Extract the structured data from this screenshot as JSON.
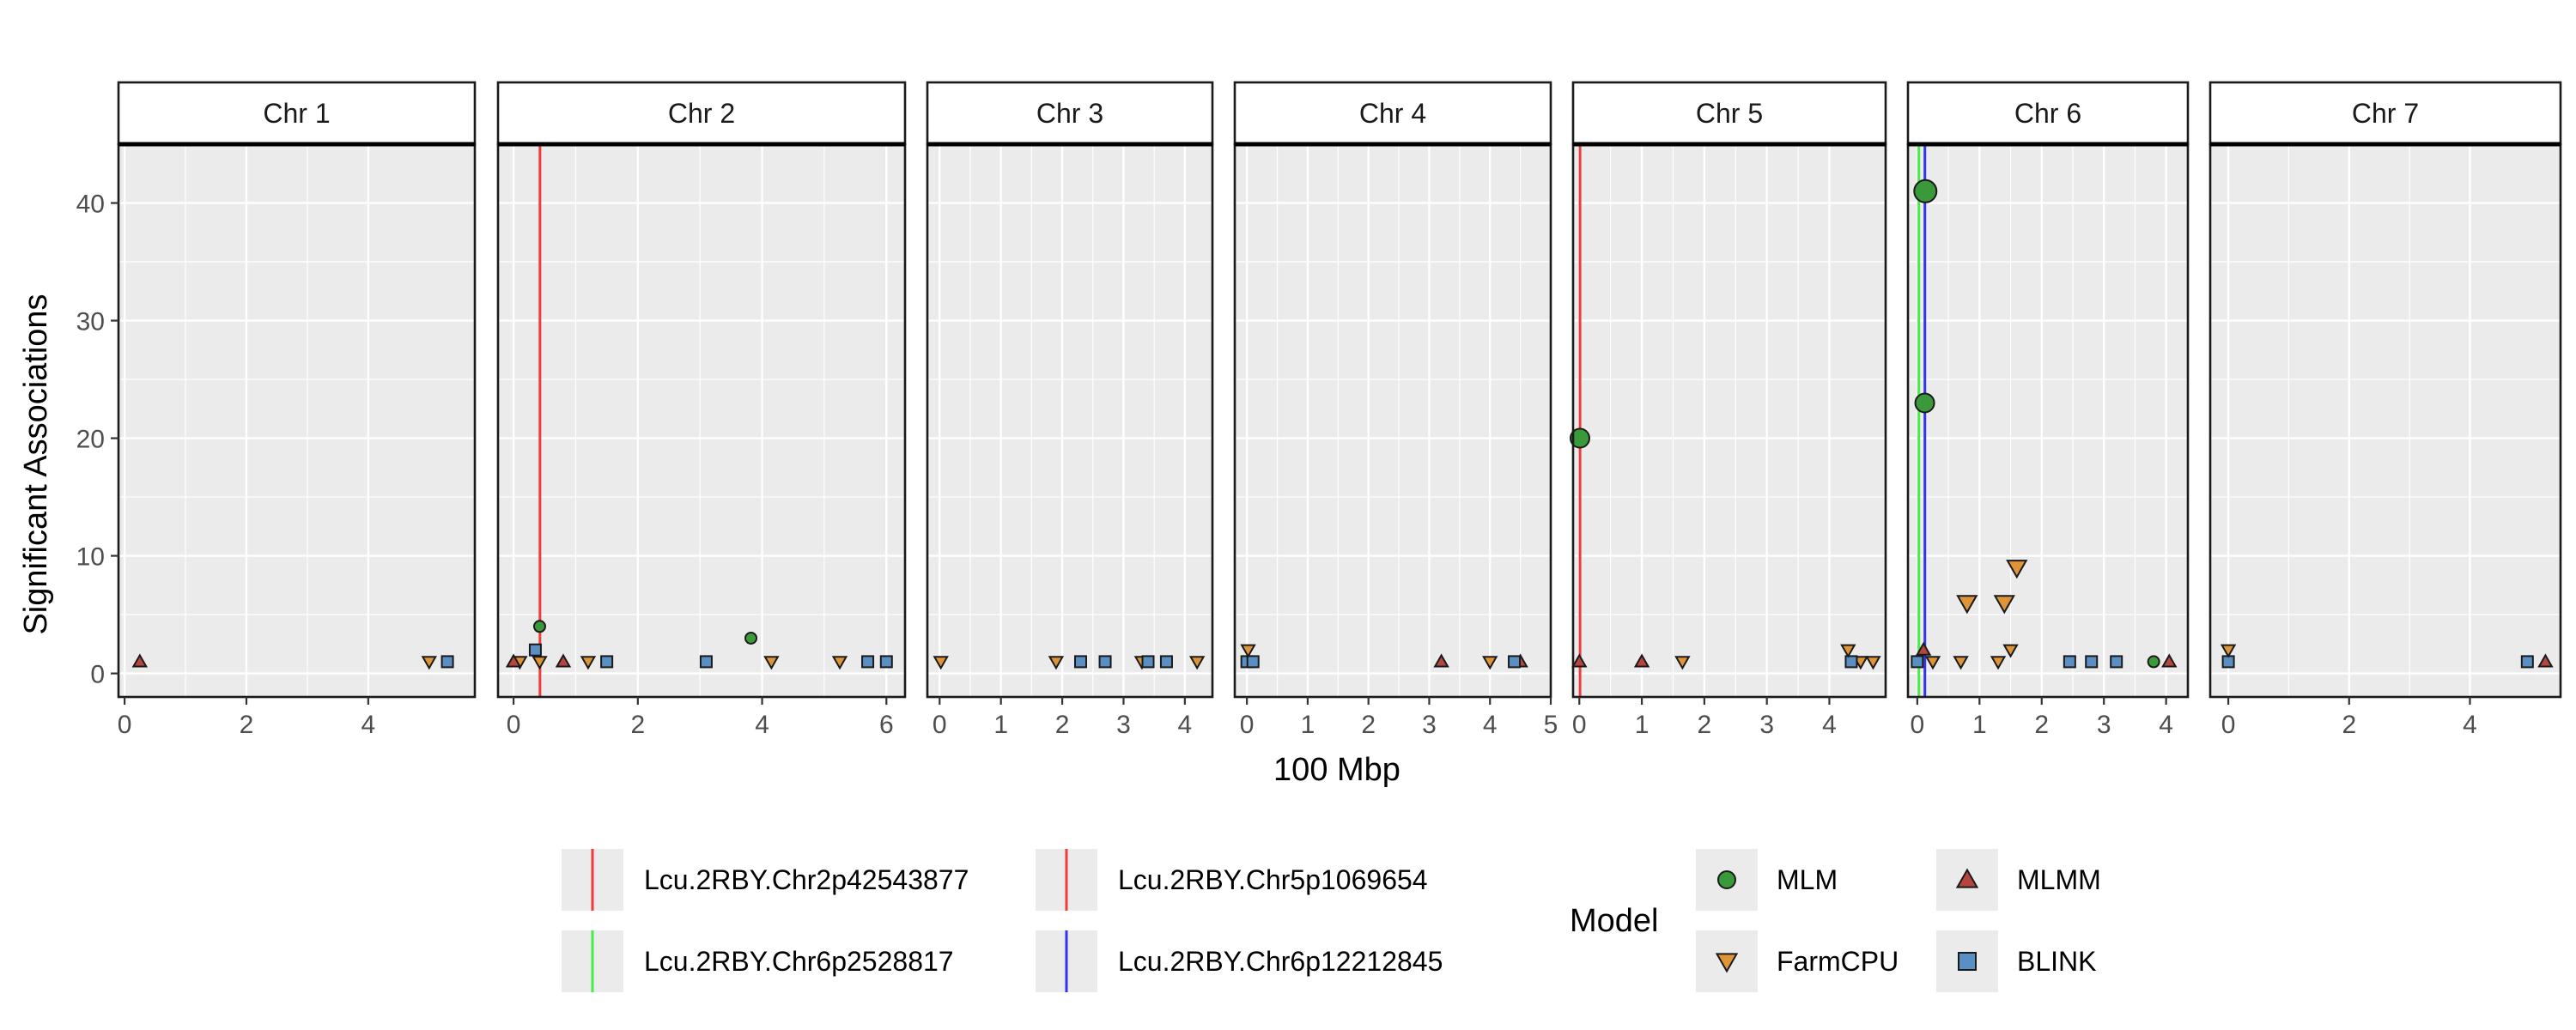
{
  "chart_data": {
    "type": "scatter",
    "xlabel": "100 Mbp",
    "ylabel": "Significant Associations",
    "ylim": [
      -2,
      45
    ],
    "y_ticks": [
      0,
      10,
      20,
      30,
      40
    ],
    "grid": true,
    "legend_placement": "bottom",
    "panels": [
      {
        "label": "Chr 1",
        "xlim": [
          -0.1,
          5.75
        ],
        "x_ticks": [
          0,
          2,
          4
        ]
      },
      {
        "label": "Chr 2",
        "xlim": [
          -0.25,
          6.3
        ],
        "x_ticks": [
          0,
          2,
          4,
          6
        ]
      },
      {
        "label": "Chr 3",
        "xlim": [
          -0.2,
          4.45
        ],
        "x_ticks": [
          0,
          1,
          2,
          3,
          4
        ]
      },
      {
        "label": "Chr 4",
        "xlim": [
          -0.2,
          5.0
        ],
        "x_ticks": [
          0,
          1,
          2,
          3,
          4,
          5
        ]
      },
      {
        "label": "Chr 5",
        "xlim": [
          -0.1,
          4.9
        ],
        "x_ticks": [
          0,
          1,
          2,
          3,
          4
        ]
      },
      {
        "label": "Chr 6",
        "xlim": [
          -0.15,
          4.35
        ],
        "x_ticks": [
          0,
          1,
          2,
          3,
          4
        ]
      },
      {
        "label": "Chr 7",
        "xlim": [
          -0.3,
          5.5
        ],
        "x_ticks": [
          0,
          2,
          4
        ]
      }
    ],
    "vlines": [
      {
        "name": "Lcu.2RBY.Chr2p42543877",
        "panel": "Chr 2",
        "x": 0.425,
        "color": "#EE3B3B"
      },
      {
        "name": "Lcu.2RBY.Chr5p1069654",
        "panel": "Chr 5",
        "x": 0.011,
        "color": "#EE3B3B"
      },
      {
        "name": "Lcu.2RBY.Chr6p2528817",
        "panel": "Chr 6",
        "x": 0.025,
        "color": "#44EE44"
      },
      {
        "name": "Lcu.2RBY.Chr6p12212845",
        "panel": "Chr 6",
        "x": 0.122,
        "color": "#3333EE"
      }
    ],
    "series": [
      {
        "name": "MLM",
        "shape": "circle",
        "color": "#3A9A3A",
        "points": [
          {
            "panel": "Chr 2",
            "x": 0.42,
            "y": 4
          },
          {
            "panel": "Chr 2",
            "x": 3.82,
            "y": 3
          },
          {
            "panel": "Chr 5",
            "x": 0.01,
            "y": 20
          },
          {
            "panel": "Chr 6",
            "x": 0.13,
            "y": 41
          },
          {
            "panel": "Chr 6",
            "x": 0.12,
            "y": 23
          },
          {
            "panel": "Chr 6",
            "x": 3.8,
            "y": 1
          }
        ]
      },
      {
        "name": "FarmCPU",
        "shape": "triangle-down",
        "color": "#E09438",
        "points": [
          {
            "panel": "Chr 1",
            "x": 5.0,
            "y": 1
          },
          {
            "panel": "Chr 2",
            "x": 0.1,
            "y": 1
          },
          {
            "panel": "Chr 2",
            "x": 0.42,
            "y": 1
          },
          {
            "panel": "Chr 2",
            "x": 1.2,
            "y": 1
          },
          {
            "panel": "Chr 2",
            "x": 4.15,
            "y": 1
          },
          {
            "panel": "Chr 2",
            "x": 5.25,
            "y": 1
          },
          {
            "panel": "Chr 3",
            "x": 0.02,
            "y": 1
          },
          {
            "panel": "Chr 3",
            "x": 1.9,
            "y": 1
          },
          {
            "panel": "Chr 3",
            "x": 3.3,
            "y": 1
          },
          {
            "panel": "Chr 3",
            "x": 4.2,
            "y": 1
          },
          {
            "panel": "Chr 4",
            "x": 0.02,
            "y": 2
          },
          {
            "panel": "Chr 4",
            "x": 4.0,
            "y": 1
          },
          {
            "panel": "Chr 5",
            "x": 1.65,
            "y": 1
          },
          {
            "panel": "Chr 5",
            "x": 4.3,
            "y": 2
          },
          {
            "panel": "Chr 5",
            "x": 4.5,
            "y": 1
          },
          {
            "panel": "Chr 5",
            "x": 4.7,
            "y": 1
          },
          {
            "panel": "Chr 6",
            "x": 0.25,
            "y": 1
          },
          {
            "panel": "Chr 6",
            "x": 0.7,
            "y": 1
          },
          {
            "panel": "Chr 6",
            "x": 0.8,
            "y": 6
          },
          {
            "panel": "Chr 6",
            "x": 1.3,
            "y": 1
          },
          {
            "panel": "Chr 6",
            "x": 1.4,
            "y": 6
          },
          {
            "panel": "Chr 6",
            "x": 1.5,
            "y": 2
          },
          {
            "panel": "Chr 6",
            "x": 1.6,
            "y": 9
          },
          {
            "panel": "Chr 7",
            "x": 0.0,
            "y": 2
          }
        ]
      },
      {
        "name": "MLMM",
        "shape": "triangle-up",
        "color": "#B5463E",
        "points": [
          {
            "panel": "Chr 1",
            "x": 0.25,
            "y": 1
          },
          {
            "panel": "Chr 2",
            "x": 0.0,
            "y": 1
          },
          {
            "panel": "Chr 2",
            "x": 0.8,
            "y": 1
          },
          {
            "panel": "Chr 4",
            "x": 3.2,
            "y": 1
          },
          {
            "panel": "Chr 4",
            "x": 4.5,
            "y": 1
          },
          {
            "panel": "Chr 5",
            "x": 0.0,
            "y": 1
          },
          {
            "panel": "Chr 5",
            "x": 1.0,
            "y": 1
          },
          {
            "panel": "Chr 6",
            "x": 0.1,
            "y": 2
          },
          {
            "panel": "Chr 6",
            "x": 4.05,
            "y": 1
          },
          {
            "panel": "Chr 7",
            "x": 5.25,
            "y": 1
          }
        ]
      },
      {
        "name": "BLINK",
        "shape": "square",
        "color": "#5A8FC4",
        "points": [
          {
            "panel": "Chr 1",
            "x": 5.3,
            "y": 1
          },
          {
            "panel": "Chr 2",
            "x": 0.35,
            "y": 2
          },
          {
            "panel": "Chr 2",
            "x": 1.5,
            "y": 1
          },
          {
            "panel": "Chr 2",
            "x": 3.1,
            "y": 1
          },
          {
            "panel": "Chr 2",
            "x": 5.7,
            "y": 1
          },
          {
            "panel": "Chr 2",
            "x": 6.0,
            "y": 1
          },
          {
            "panel": "Chr 3",
            "x": 2.3,
            "y": 1
          },
          {
            "panel": "Chr 3",
            "x": 2.7,
            "y": 1
          },
          {
            "panel": "Chr 3",
            "x": 3.4,
            "y": 1
          },
          {
            "panel": "Chr 3",
            "x": 3.7,
            "y": 1
          },
          {
            "panel": "Chr 4",
            "x": 0.0,
            "y": 1
          },
          {
            "panel": "Chr 4",
            "x": 0.1,
            "y": 1
          },
          {
            "panel": "Chr 4",
            "x": 4.4,
            "y": 1
          },
          {
            "panel": "Chr 5",
            "x": 4.35,
            "y": 1
          },
          {
            "panel": "Chr 6",
            "x": 0.0,
            "y": 1
          },
          {
            "panel": "Chr 6",
            "x": 2.45,
            "y": 1
          },
          {
            "panel": "Chr 6",
            "x": 2.8,
            "y": 1
          },
          {
            "panel": "Chr 6",
            "x": 3.2,
            "y": 1
          },
          {
            "panel": "Chr 7",
            "x": 0.0,
            "y": 1
          },
          {
            "panel": "Chr 7",
            "x": 4.95,
            "y": 1
          }
        ]
      }
    ],
    "legend": {
      "line_entries": [
        "Lcu.2RBY.Chr2p42543877",
        "Lcu.2RBY.Chr5p1069654",
        "Lcu.2RBY.Chr6p2528817",
        "Lcu.2RBY.Chr6p12212845"
      ],
      "shape_title": "Model",
      "shape_entries": [
        "MLM",
        "MLMM",
        "FarmCPU",
        "BLINK"
      ]
    }
  }
}
